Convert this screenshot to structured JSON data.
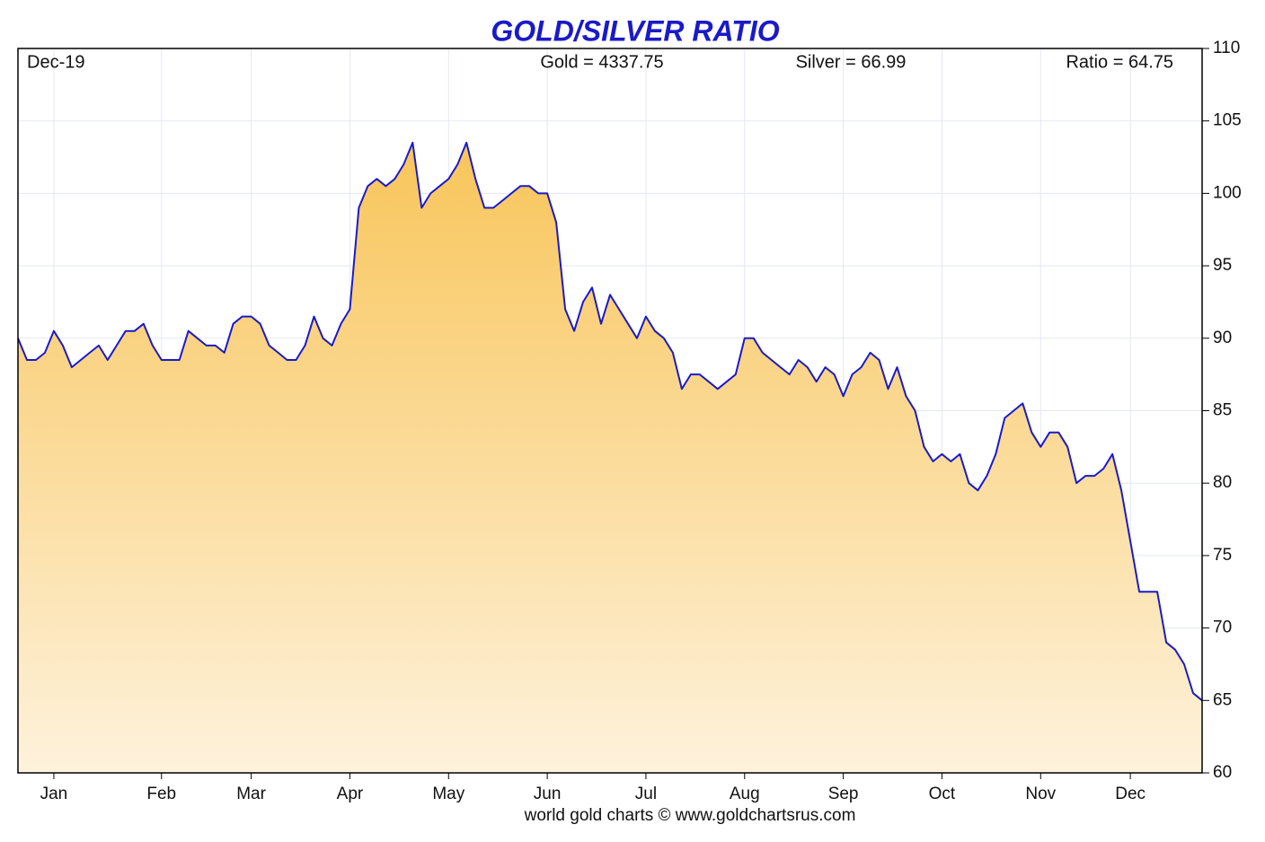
{
  "chart_data": {
    "type": "area-line",
    "title": "GOLD/SILVER RATIO",
    "header": {
      "date": "Dec-19",
      "gold": "Gold = 4337.75",
      "silver": "Silver = 66.99",
      "ratio": "Ratio = 64.75"
    },
    "footer": "world gold charts © www.goldchartsrus.com",
    "categories": [
      null,
      null,
      null,
      null,
      "Jan",
      null,
      null,
      null,
      null,
      null,
      null,
      null,
      null,
      null,
      null,
      null,
      "Feb",
      null,
      null,
      null,
      null,
      null,
      null,
      null,
      null,
      null,
      "Mar",
      null,
      null,
      null,
      null,
      null,
      null,
      null,
      null,
      null,
      null,
      "Apr",
      null,
      null,
      null,
      null,
      null,
      null,
      null,
      null,
      null,
      null,
      "May",
      null,
      null,
      null,
      null,
      null,
      null,
      null,
      null,
      null,
      null,
      "Jun",
      null,
      null,
      null,
      null,
      null,
      null,
      null,
      null,
      null,
      null,
      "Jul",
      null,
      null,
      null,
      null,
      null,
      null,
      null,
      null,
      null,
      null,
      "Aug",
      null,
      null,
      null,
      null,
      null,
      null,
      null,
      null,
      null,
      null,
      "Sep",
      null,
      null,
      null,
      null,
      null,
      null,
      null,
      null,
      null,
      null,
      "Oct",
      null,
      null,
      null,
      null,
      null,
      null,
      null,
      null,
      null,
      null,
      "Nov",
      null,
      null,
      null,
      null,
      null,
      null,
      null,
      null,
      null,
      "Dec",
      null,
      null,
      null,
      null,
      null,
      null,
      null,
      null
    ],
    "values": [
      90,
      88.5,
      88.5,
      89,
      90.5,
      89.5,
      88,
      88.5,
      89,
      89.5,
      88.5,
      89.5,
      90.5,
      90.5,
      91,
      89.5,
      88.5,
      88.5,
      88.5,
      90.5,
      90,
      89.5,
      89.5,
      89,
      91,
      91.5,
      91.5,
      91,
      89.5,
      89,
      88.5,
      88.5,
      89.5,
      91.5,
      90,
      89.5,
      91,
      92,
      99,
      100.5,
      101,
      100.5,
      101,
      102,
      103.5,
      99,
      100,
      100.5,
      101,
      102,
      103.5,
      101,
      99,
      99,
      99.5,
      100,
      100.5,
      100.5,
      100,
      100,
      98,
      92,
      90.5,
      92.5,
      93.5,
      91,
      93,
      92,
      91,
      90,
      91.5,
      90.5,
      90,
      89,
      86.5,
      87.5,
      87.5,
      87,
      86.5,
      87,
      87.5,
      90,
      90,
      89,
      88.5,
      88,
      87.5,
      88.5,
      88,
      87,
      88,
      87.5,
      86,
      87.5,
      88,
      89,
      88.5,
      86.5,
      88,
      86,
      85,
      82.5,
      81.5,
      82,
      81.5,
      82,
      80,
      79.5,
      80.5,
      82,
      84.5,
      85,
      85.5,
      83.5,
      82.5,
      83.5,
      83.5,
      82.5,
      80,
      80.5,
      80.5,
      81,
      82,
      79.5,
      76,
      72.5,
      72.5,
      72.5,
      69,
      68.5,
      67.5,
      65.5,
      65
    ],
    "line_color": "#1a1ac8",
    "fill_top": "#f8c55a",
    "fill_bottom": "#fef2dc",
    "ylim": [
      60,
      110
    ],
    "yticks": [
      60,
      65,
      70,
      75,
      80,
      85,
      90,
      95,
      100,
      105,
      110
    ],
    "grid": true
  }
}
